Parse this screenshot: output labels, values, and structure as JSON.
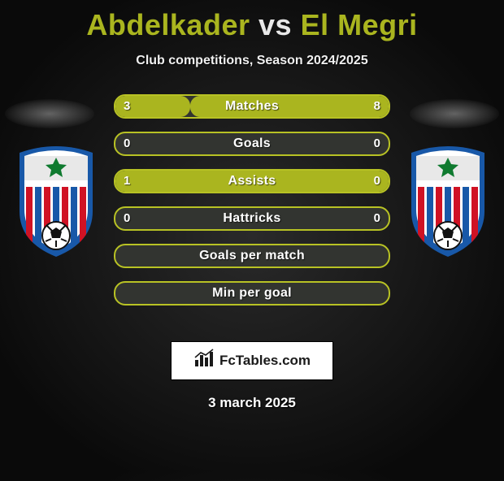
{
  "title": {
    "p1": "Abdelkader",
    "vs": "vs",
    "p2": "El Megri"
  },
  "subtitle": "Club competitions, Season 2024/2025",
  "colors": {
    "accent": "#aab51f",
    "accent_border": "#b8c224",
    "row_bg_empty": "#323430",
    "text": "#ffffff"
  },
  "badge": {
    "outer": "#1858a8",
    "inner_bg": "#ffffff",
    "top_panel": "#e8e8e8",
    "star": "#0f7a2f",
    "ball": "#111111",
    "stripe_red": "#d01224",
    "stripe_blue": "#1858a8"
  },
  "rows": [
    {
      "label": "Matches",
      "left": "3",
      "right": "8",
      "left_pct": 27.3,
      "right_pct": 72.7,
      "show_values": true
    },
    {
      "label": "Goals",
      "left": "0",
      "right": "0",
      "left_pct": 0,
      "right_pct": 0,
      "show_values": true
    },
    {
      "label": "Assists",
      "left": "1",
      "right": "0",
      "left_pct": 100,
      "right_pct": 0,
      "show_values": true
    },
    {
      "label": "Hattricks",
      "left": "0",
      "right": "0",
      "left_pct": 0,
      "right_pct": 0,
      "show_values": true
    },
    {
      "label": "Goals per match",
      "left": "",
      "right": "",
      "left_pct": 0,
      "right_pct": 0,
      "show_values": false
    },
    {
      "label": "Min per goal",
      "left": "",
      "right": "",
      "left_pct": 0,
      "right_pct": 0,
      "show_values": false
    }
  ],
  "brand": {
    "text": "FcTables.com",
    "bars": "#1a1a1a"
  },
  "date": "3 march 2025"
}
